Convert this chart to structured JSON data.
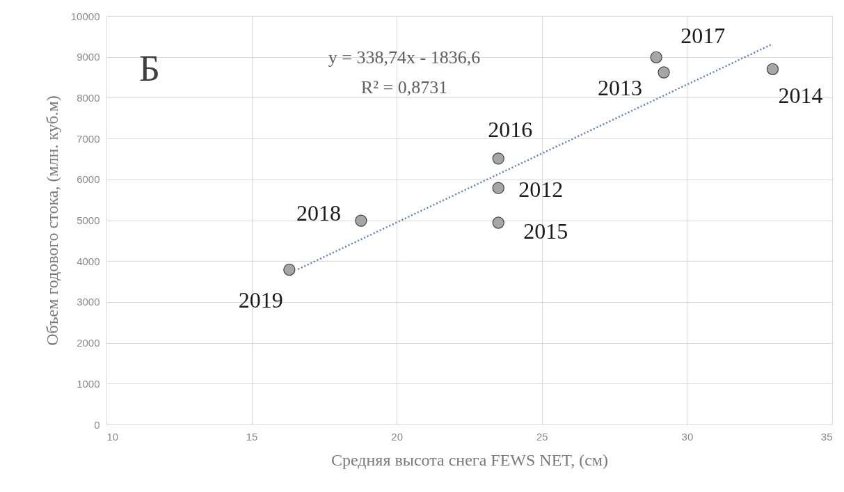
{
  "chart_data": {
    "type": "scatter",
    "xlabel": "Средняя высота снега FEWS NET, (см)",
    "ylabel": "Объем годового стока, (млн. куб.м)",
    "xlim": [
      10,
      35
    ],
    "xticks": [
      10,
      15,
      20,
      25,
      30,
      35
    ],
    "ylim": [
      0,
      10000
    ],
    "yticks": [
      0,
      1000,
      2000,
      3000,
      4000,
      5000,
      6000,
      7000,
      8000,
      9000,
      10000
    ],
    "grid": true,
    "marker": "circle",
    "series": [
      {
        "color": "#a6a6a6",
        "x": [
          23.5,
          29.2,
          32.95,
          23.5,
          23.5,
          28.94,
          18.77,
          16.3
        ],
        "values": [
          5790,
          8620,
          8700,
          4940,
          6510,
          8990,
          4990,
          3790
        ]
      },
      {
        "type": "line",
        "color": "#5b7fbf",
        "line_style": "dotted",
        "marker": "none",
        "x": [
          16.6,
          32.9
        ],
        "values": [
          3800,
          9300
        ]
      }
    ],
    "annotations": [
      "Б",
      "y = 338,74x - 1836,6",
      "R² = 0,8731",
      {
        "text": "2012",
        "x": 23.5,
        "y": 5790
      },
      {
        "text": "2013",
        "x": 29.2,
        "y": 8620
      },
      {
        "text": "2014",
        "x": 32.95,
        "y": 8700
      },
      {
        "text": "2015",
        "x": 23.5,
        "y": 4940
      },
      {
        "text": "2016",
        "x": 23.5,
        "y": 6510
      },
      {
        "text": "2017",
        "x": 28.94,
        "y": 8990
      },
      {
        "text": "2018",
        "x": 18.77,
        "y": 4990
      },
      {
        "text": "2019",
        "x": 16.3,
        "y": 3790
      }
    ]
  }
}
